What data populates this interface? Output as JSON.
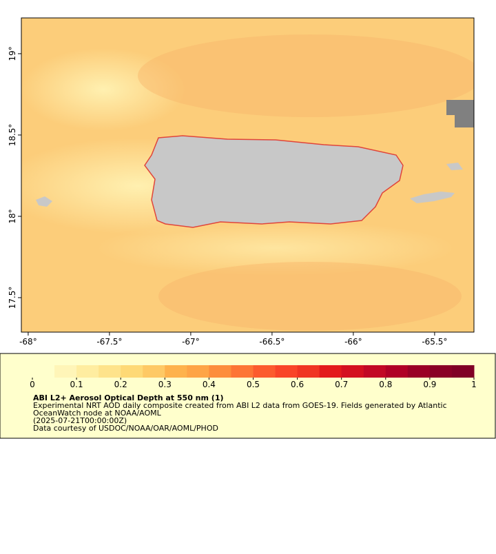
{
  "map": {
    "xlim": [
      -68.042,
      -65.258
    ],
    "ylim": [
      17.288,
      19.22
    ],
    "xticks": [
      {
        "value": -68,
        "label": "-68°"
      },
      {
        "value": -67.5,
        "label": "-67.5°"
      },
      {
        "value": -67,
        "label": "-67°"
      },
      {
        "value": -66.5,
        "label": "-66.5°"
      },
      {
        "value": -66,
        "label": "-66°"
      },
      {
        "value": -65.5,
        "label": "-65.5°"
      }
    ],
    "yticks": [
      {
        "value": 17.5,
        "label": "17.5°"
      },
      {
        "value": 18,
        "label": "18°"
      },
      {
        "value": 18.5,
        "label": "18.5°"
      },
      {
        "value": 19,
        "label": "19°"
      }
    ]
  },
  "colorbar": {
    "lim": [
      0,
      1
    ],
    "ticks": [
      0,
      0.1,
      0.2,
      0.3,
      0.4,
      0.5,
      0.6,
      0.7,
      0.8,
      0.9,
      1
    ],
    "colors": [
      "#ffffcc",
      "#fff5b8",
      "#ffeda0",
      "#fee38b",
      "#fed976",
      "#fec965",
      "#feb24c",
      "#fea446",
      "#fd8d3c",
      "#fd7535",
      "#fc5b2e",
      "#f94528",
      "#f03523",
      "#e31a1c",
      "#d41020",
      "#c20825",
      "#b00026",
      "#9a0026",
      "#8a0026",
      "#800026"
    ]
  },
  "legend": {
    "title": "ABI L2+ Aerosol Optical Depth at 550 nm (1)",
    "lines": [
      "Experimental NRT AOD daily composite created from ABI L2 data from GOES-19. Fields generated by Atlantic",
      "OceanWatch node at NOAA/AOML",
      "(2025-07-21T00:00:00Z)",
      "Data courtesy of USDOC/NOAA/OAR/AOML/PHOD"
    ]
  }
}
